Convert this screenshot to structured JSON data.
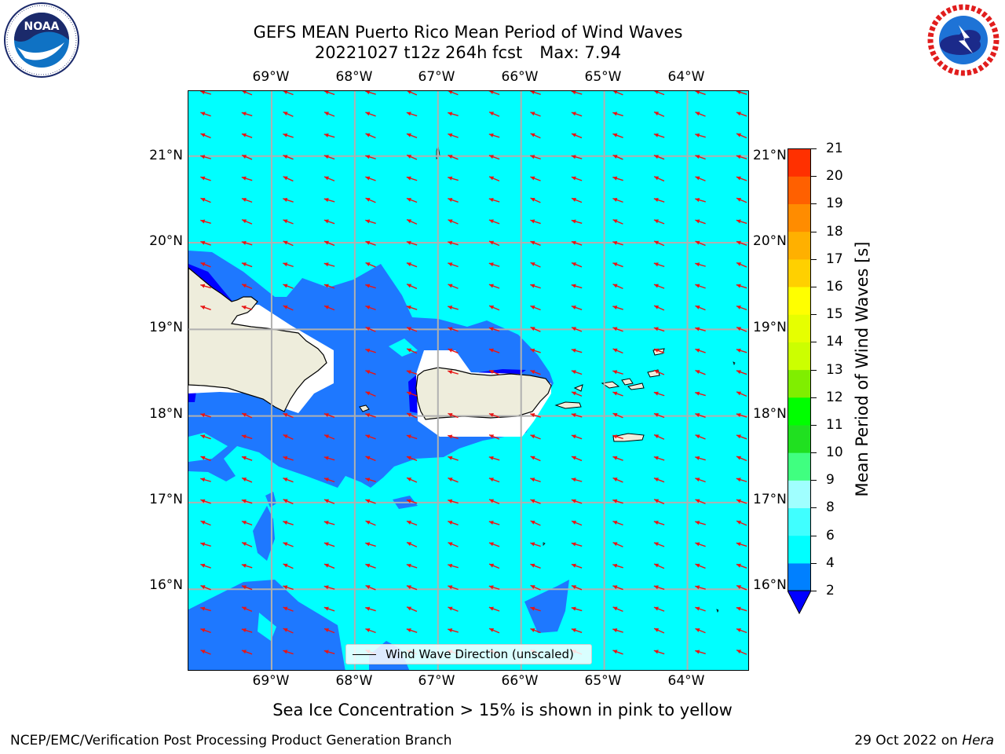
{
  "header": {
    "title_line1": "GEFS MEAN Puerto Rico Mean Period of Wind Waves",
    "title_date": "20221027 t12z 264h fcst",
    "title_max": "Max: 7.94"
  },
  "logos": {
    "left": {
      "name": "NOAA",
      "ring_text": "NATIONAL OCEANIC AND ATMOSPHERIC ADMINISTRATION · U.S. DEPARTMENT OF COMMERCE",
      "colors": {
        "navy": "#1b2a6b",
        "blue": "#0f72c4",
        "white": "#ffffff"
      }
    },
    "right": {
      "name": "NATIONAL WEATHER SERVICE",
      "colors": {
        "red": "#e11d1d",
        "blue": "#1e73d6",
        "cloud": "#1b2a8a"
      }
    }
  },
  "map": {
    "lon_ticks": [
      "69°W",
      "68°W",
      "67°W",
      "66°W",
      "65°W",
      "64°W"
    ],
    "lat_ticks": [
      "21°N",
      "20°N",
      "19°N",
      "18°N",
      "17°N",
      "16°N"
    ],
    "extent": {
      "lon": [
        -70.0,
        -63.25
      ],
      "lat": [
        15.05,
        21.75
      ]
    },
    "gridlines": true,
    "arrow_color": "#e81515",
    "fill_colors": {
      "ocean_4_6": "#00ffff",
      "period_2_4": "#1e78ff",
      "period_lt_2": "#0000ff",
      "land": "#eeeddc",
      "no_data": "#ffffff"
    }
  },
  "legend": {
    "label": "Wind Wave Direction (unscaled)"
  },
  "colorbar": {
    "label": "Mean Period of Wind Waves [s]",
    "ticks": [
      "2",
      "4",
      "6",
      "8",
      "9",
      "10",
      "11",
      "12",
      "13",
      "14",
      "15",
      "16",
      "17",
      "18",
      "19",
      "20",
      "21"
    ],
    "bounds": [
      2,
      4,
      6,
      8,
      9,
      10,
      11,
      12,
      13,
      14,
      15,
      16,
      17,
      18,
      19,
      20,
      21
    ],
    "colors": [
      "#0080ff",
      "#00ffff",
      "#40ffff",
      "#a0ffff",
      "#40ff80",
      "#20e020",
      "#00ff00",
      "#80ee00",
      "#ccff00",
      "#e6ff00",
      "#ffff00",
      "#ffd000",
      "#ffb000",
      "#ff8c00",
      "#ff6000",
      "#ff3000",
      "#ff0000"
    ],
    "under_color": "#0000ff"
  },
  "footer": {
    "note": "Sea Ice Concentration > 15% is shown in pink to yellow",
    "left": "NCEP/EMC/Verification Post Processing Product Generation Branch",
    "right_date": "29 Oct 2022 on ",
    "right_machine": "Hera"
  }
}
